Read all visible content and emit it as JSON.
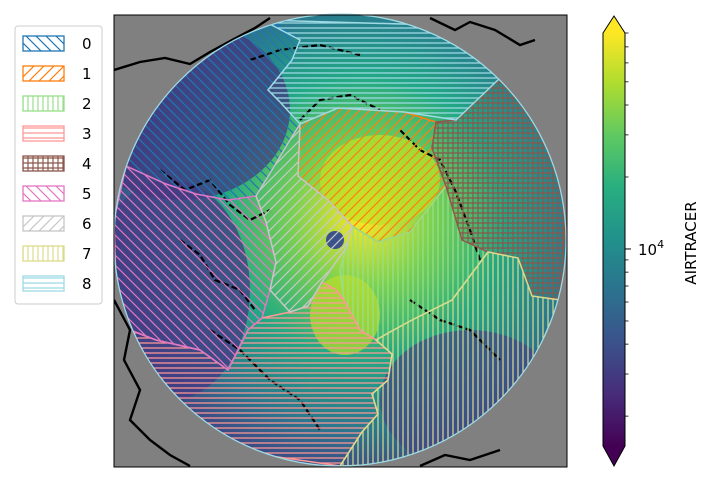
{
  "chart_data": {
    "type": "heatmap",
    "projection": "north-polar-stereographic",
    "background_color": "#808080",
    "coastline_color": "#000000",
    "colorbar": {
      "label": "AIRTRACER",
      "scale": "log",
      "colormap": "viridis",
      "extend": "both",
      "ticks": [
        {
          "value": 10000,
          "base": "10",
          "exponent": "4"
        }
      ],
      "colors": [
        "#440154",
        "#472c7a",
        "#3b528b",
        "#2c728e",
        "#21918c",
        "#28ae80",
        "#5ec962",
        "#addc30",
        "#fde725"
      ]
    },
    "legend": {
      "position": "left",
      "entries": [
        {
          "label": "0",
          "color": "#1f77b4",
          "hatch": "diagonal-back"
        },
        {
          "label": "1",
          "color": "#ff7f0e",
          "hatch": "diagonal-forward"
        },
        {
          "label": "2",
          "color": "#98df8a",
          "hatch": "vertical"
        },
        {
          "label": "3",
          "color": "#ff9896",
          "hatch": "horizontal"
        },
        {
          "label": "4",
          "color": "#8c564b",
          "hatch": "grid"
        },
        {
          "label": "5",
          "color": "#e377c2",
          "hatch": "diagonal-back"
        },
        {
          "label": "6",
          "color": "#c7c7c7",
          "hatch": "diagonal-forward"
        },
        {
          "label": "7",
          "color": "#dbdb8d",
          "hatch": "vertical"
        },
        {
          "label": "8",
          "color": "#9edae5",
          "hatch": "horizontal"
        }
      ]
    },
    "regions": [
      {
        "label": "0",
        "color": "#1f77b4"
      },
      {
        "label": "1",
        "color": "#ff7f0e"
      },
      {
        "label": "2",
        "color": "#98df8a"
      },
      {
        "label": "3",
        "color": "#ff9896"
      },
      {
        "label": "4",
        "color": "#8c564b"
      },
      {
        "label": "5",
        "color": "#e377c2"
      },
      {
        "label": "6",
        "color": "#c7c7c7"
      },
      {
        "label": "7",
        "color": "#dbdb8d"
      },
      {
        "label": "8",
        "color": "#9edae5"
      }
    ]
  }
}
